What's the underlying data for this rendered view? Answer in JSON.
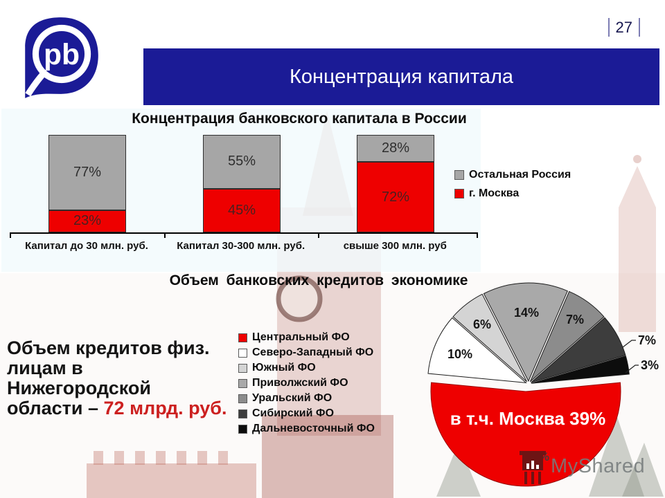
{
  "page": {
    "number": "27"
  },
  "logo": {
    "text": "pb"
  },
  "title_banner": {
    "label": "Концентрация капитала"
  },
  "colors": {
    "banner_blue": "#1b1b96",
    "moscow_red": "#ee0000",
    "rest_of_russia_gray": "#a6a6a6",
    "highlight_red": "#cc2020"
  },
  "left_note": {
    "lines": [
      "Объем кредитов физ.",
      "лицам в",
      "Нижегородской",
      "области – "
    ],
    "highlight": "72 млрд. руб."
  },
  "watermark": {
    "label": "MyShared"
  },
  "chart_data": [
    {
      "type": "bar",
      "stacked": true,
      "title": "Концентрация банковского капитала в России",
      "categories": [
        "Капитал до 30 млн. руб.",
        "Капитал 30-300 млн. руб.",
        "свыше 300 млн. руб"
      ],
      "series": [
        {
          "name": "Остальная Россия",
          "color": "#a6a6a6",
          "values": [
            77,
            55,
            28
          ]
        },
        {
          "name": "г. Москва",
          "color": "#ee0000",
          "values": [
            23,
            45,
            72
          ]
        }
      ],
      "value_format": "percent",
      "ylim": [
        0,
        100
      ],
      "legend_position": "right",
      "grid": false
    },
    {
      "type": "pie",
      "title": "Объем банковских кредитов экономике",
      "slices": [
        {
          "label": "Центральный ФО",
          "value": 53,
          "color": "#ee0000",
          "annotation": "в т.ч. Москва 39%"
        },
        {
          "label": "Северо-Западный ФО",
          "value": 10,
          "color": "#ffffff"
        },
        {
          "label": "Южный ФО",
          "value": 6,
          "color": "#d4d4d4"
        },
        {
          "label": "Приволжский ФО",
          "value": 14,
          "color": "#a9a9a9"
        },
        {
          "label": "Уральский ФО",
          "value": 7,
          "color": "#8c8c8c"
        },
        {
          "label": "Сибирский ФО",
          "value": 7,
          "color": "#3d3d3d"
        },
        {
          "label": "Дальневосточный ФО",
          "value": 3,
          "color": "#0d0d0d"
        }
      ],
      "legend_position": "left",
      "exploded": true
    }
  ]
}
